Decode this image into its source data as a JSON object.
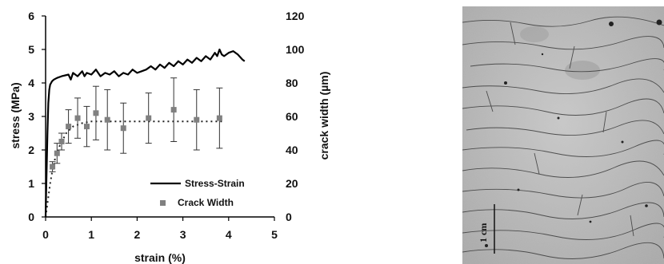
{
  "chart_data": {
    "type": "line",
    "xlabel": "strain (%)",
    "ylabel": "stress (MPa)",
    "y2label": "crack width (µm)",
    "xlim": [
      0,
      5
    ],
    "ylim": [
      0,
      6
    ],
    "y2lim": [
      0,
      120
    ],
    "xticks": [
      "0",
      "1",
      "2",
      "3",
      "4",
      "5"
    ],
    "yticks": [
      "0",
      "1",
      "2",
      "3",
      "4",
      "5",
      "6"
    ],
    "y2ticks": [
      "0",
      "20",
      "40",
      "60",
      "80",
      "100",
      "120"
    ],
    "grid": false,
    "legend_position": "bottom-right",
    "series": [
      {
        "name": "Stress-Strain",
        "axis": "left",
        "style": "solid-line",
        "x": [
          0,
          0.02,
          0.04,
          0.06,
          0.08,
          0.1,
          0.12,
          0.14,
          0.18,
          0.25,
          0.35,
          0.5,
          0.55,
          0.6,
          0.7,
          0.8,
          0.85,
          0.9,
          1.0,
          1.1,
          1.2,
          1.3,
          1.4,
          1.5,
          1.6,
          1.7,
          1.8,
          1.9,
          2.0,
          2.1,
          2.2,
          2.3,
          2.4,
          2.5,
          2.6,
          2.7,
          2.8,
          2.9,
          3.0,
          3.1,
          3.2,
          3.3,
          3.4,
          3.5,
          3.6,
          3.7,
          3.75,
          3.8,
          3.85,
          3.9,
          4.0,
          4.1,
          4.2,
          4.3,
          4.35
        ],
        "y": [
          0,
          1.2,
          2.5,
          3.4,
          3.8,
          3.95,
          4.0,
          4.05,
          4.1,
          4.15,
          4.2,
          4.25,
          4.1,
          4.3,
          4.2,
          4.35,
          4.2,
          4.3,
          4.25,
          4.4,
          4.2,
          4.3,
          4.25,
          4.35,
          4.2,
          4.3,
          4.25,
          4.4,
          4.3,
          4.35,
          4.4,
          4.5,
          4.4,
          4.55,
          4.45,
          4.6,
          4.5,
          4.65,
          4.55,
          4.7,
          4.6,
          4.75,
          4.65,
          4.8,
          4.7,
          4.9,
          4.8,
          5.0,
          4.85,
          4.8,
          4.9,
          4.95,
          4.85,
          4.7,
          4.65
        ]
      },
      {
        "name": "Crack Width",
        "axis": "right",
        "style": "square-markers-with-error-bars",
        "x": [
          0.15,
          0.25,
          0.35,
          0.5,
          0.7,
          0.9,
          1.1,
          1.35,
          1.7,
          2.25,
          2.8,
          3.3,
          3.8
        ],
        "y": [
          30,
          38,
          45,
          54,
          59,
          54,
          62,
          58,
          53,
          59,
          64,
          58,
          59
        ],
        "error": [
          3,
          6,
          5,
          10,
          12,
          12,
          16,
          18,
          15,
          15,
          19,
          18,
          18
        ]
      }
    ],
    "trendline": {
      "axis": "right",
      "style": "dotted",
      "x": [
        0,
        0.05,
        0.1,
        0.15,
        0.2,
        0.3,
        0.45,
        0.6,
        0.8,
        1.0,
        1.3,
        1.7,
        2.2,
        2.8,
        3.4,
        3.9
      ],
      "y": [
        0,
        10,
        20,
        28,
        34,
        42,
        50,
        54,
        56,
        57,
        57,
        57,
        57,
        57,
        57,
        57
      ]
    }
  },
  "photo": {
    "scale_label": "1 cm"
  }
}
